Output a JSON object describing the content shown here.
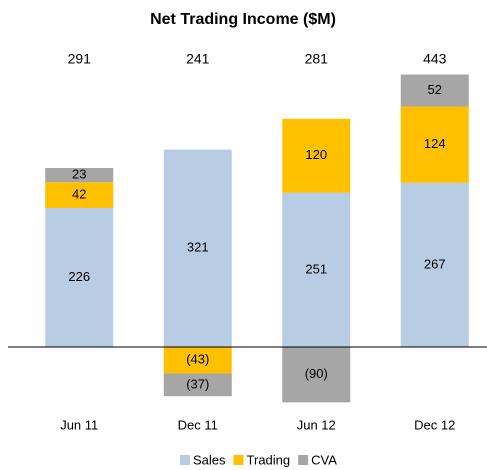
{
  "chart_data": {
    "type": "stacked_bar",
    "title": "Net Trading Income ($M)",
    "categories": [
      "Jun 11",
      "Dec 11",
      "Jun 12",
      "Dec 12"
    ],
    "totals": [
      291,
      241,
      281,
      443
    ],
    "series": [
      {
        "name": "Sales",
        "color": "#b8cce4",
        "values": [
          226,
          321,
          251,
          267
        ],
        "value_labels": [
          "226",
          "321",
          "251",
          "267"
        ]
      },
      {
        "name": "Trading",
        "color": "#ffc000",
        "values": [
          42,
          -43,
          120,
          124
        ],
        "value_labels": [
          "42",
          "(43)",
          "120",
          "124"
        ]
      },
      {
        "name": "CVA",
        "color": "#a6a6a6",
        "values": [
          23,
          -37,
          -90,
          52
        ],
        "value_labels": [
          "23",
          "(37)",
          "(90)",
          "52"
        ]
      }
    ],
    "legend": "bottom"
  }
}
